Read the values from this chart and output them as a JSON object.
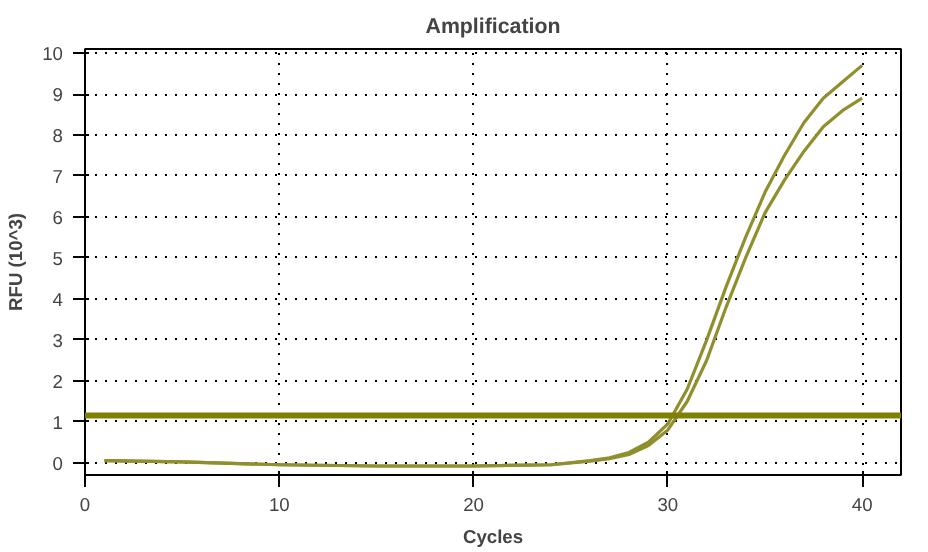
{
  "chart_data": {
    "type": "line",
    "title": "Amplification",
    "xlabel": "Cycles",
    "ylabel": "RFU (10^3)",
    "x": [
      1,
      5,
      10,
      15,
      20,
      24,
      26,
      27,
      28,
      29,
      30,
      31,
      32,
      33,
      34,
      35,
      36,
      37,
      38,
      39,
      40
    ],
    "series": [
      {
        "color": "#8f8f2e",
        "values": [
          0.05,
          0.02,
          -0.05,
          -0.08,
          -0.08,
          -0.05,
          0.05,
          0.12,
          0.25,
          0.5,
          0.95,
          1.8,
          3.0,
          4.3,
          5.5,
          6.6,
          7.5,
          8.3,
          8.9,
          9.3,
          9.7
        ]
      },
      {
        "color": "#8f8f2e",
        "values": [
          0.05,
          0.02,
          -0.05,
          -0.08,
          -0.08,
          -0.05,
          0.04,
          0.1,
          0.2,
          0.42,
          0.8,
          1.5,
          2.5,
          3.8,
          5.0,
          6.1,
          6.9,
          7.6,
          8.2,
          8.6,
          8.9
        ]
      }
    ],
    "xlim": [
      0,
      42
    ],
    "xticks": [
      0,
      10,
      20,
      30,
      40
    ],
    "ylim": [
      -0.3,
      10.1
    ],
    "yticks": [
      0,
      1,
      2,
      3,
      4,
      5,
      6,
      7,
      8,
      9,
      10
    ],
    "grid": true,
    "line_style": "solid",
    "marker": "none",
    "ref_lines": [
      {
        "axis": "y",
        "value": 1.15,
        "color": "#808000"
      }
    ]
  }
}
